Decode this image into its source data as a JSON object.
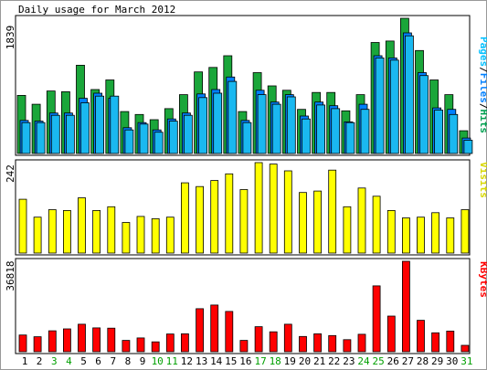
{
  "chart_data": {
    "type": "bar",
    "title": "Daily usage for March 2012",
    "categories": [
      "1",
      "2",
      "3",
      "4",
      "5",
      "6",
      "7",
      "8",
      "9",
      "10",
      "11",
      "12",
      "13",
      "14",
      "15",
      "16",
      "17",
      "18",
      "19",
      "20",
      "21",
      "22",
      "23",
      "24",
      "25",
      "26",
      "27",
      "28",
      "29",
      "30",
      "31"
    ],
    "weekend_days": [
      "3",
      "4",
      "10",
      "11",
      "17",
      "18",
      "24",
      "25",
      "31"
    ],
    "panels": [
      {
        "id": "top",
        "ymax_label": "1839",
        "ymax": 1839,
        "legend": [
          {
            "text": "Pages",
            "color": "#00c0ff"
          },
          {
            "text": "/",
            "color": "#000000"
          },
          {
            "text": "Files",
            "color": "#0080ff"
          },
          {
            "text": "/",
            "color": "#000000"
          },
          {
            "text": "Hits",
            "color": "#00a050"
          }
        ],
        "series": [
          {
            "name": "Hits",
            "color": "#1aa63a",
            "values": [
              790,
              670,
              850,
              840,
              1200,
              870,
              1000,
              570,
              530,
              460,
              610,
              800,
              1110,
              1170,
              1330,
              570,
              1100,
              920,
              860,
              600,
              830,
              830,
              580,
              800,
              1510,
              1530,
              1840,
              1400,
              1000,
              800,
              310
            ]
          },
          {
            "name": "Files",
            "color": "#0080ff",
            "values": [
              450,
              440,
              550,
              550,
              750,
              820,
              750,
              350,
              420,
              320,
              470,
              550,
              810,
              870,
              1040,
              450,
              860,
              700,
              800,
              510,
              700,
              650,
              430,
              670,
              1330,
              1300,
              1640,
              1100,
              620,
              600,
              210
            ]
          },
          {
            "name": "Pages",
            "color": "#1ab8f0",
            "values": [
              420,
              420,
              520,
              520,
              690,
              780,
              780,
              320,
              400,
              290,
              440,
              520,
              760,
              820,
              980,
              420,
              800,
              670,
              770,
              470,
              660,
              610,
              420,
              600,
              1300,
              1270,
              1600,
              1060,
              590,
              530,
              180
            ]
          }
        ]
      },
      {
        "id": "middle",
        "ymax_label": "242",
        "ymax": 242,
        "legend": [
          {
            "text": "Visits",
            "color": "#d8d800"
          }
        ],
        "series": [
          {
            "name": "Visits",
            "color": "#ffff00",
            "values": [
              144,
              96,
              116,
              114,
              148,
              114,
              124,
              82,
              98,
              92,
              96,
              188,
              178,
              194,
              212,
              170,
              242,
              238,
              220,
              162,
              166,
              222,
              124,
              174,
              152,
              114,
              94,
              96,
              108,
              94,
              116
            ]
          }
        ]
      },
      {
        "id": "bottom",
        "ymax_label": "36818",
        "ymax": 36818,
        "legend": [
          {
            "text": "KBytes",
            "color": "#ff0000"
          }
        ],
        "series": [
          {
            "name": "KBytes",
            "color": "#ff0000",
            "values": [
              6800,
              6100,
              8500,
              9300,
              11200,
              9700,
              9600,
              4600,
              5600,
              4000,
              7200,
              7300,
              17500,
              19000,
              16400,
              4600,
              10200,
              8100,
              11200,
              6200,
              7300,
              6600,
              4900,
              7100,
              26800,
              14500,
              37100,
              12800,
              7700,
              8400,
              2600
            ]
          }
        ]
      }
    ]
  }
}
